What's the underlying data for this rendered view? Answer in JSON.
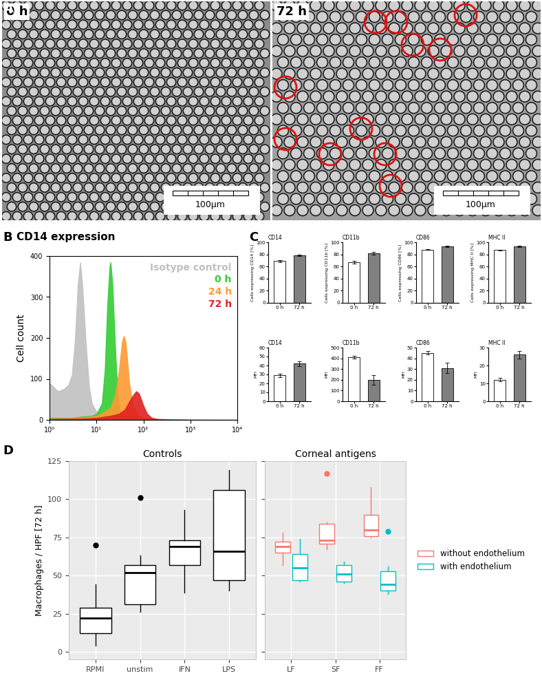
{
  "images": {
    "panel_label": "A",
    "items": [
      {
        "label": "0 h",
        "scale_bar": "100µm"
      },
      {
        "label": "72 h",
        "scale_bar": "100µm"
      }
    ]
  },
  "chart_data": [
    {
      "type": "area",
      "panel_label": "B",
      "title": "CD14 expression",
      "ylabel": "Cell count",
      "log": "x",
      "xlim": [
        1,
        10000
      ],
      "xticks": [
        {
          "value": 1,
          "label": "10⁰"
        },
        {
          "value": 10,
          "label": "10¹"
        },
        {
          "value": 100,
          "label": "10²"
        },
        {
          "value": 1000,
          "label": "10³"
        },
        {
          "value": 10000,
          "label": "10⁴"
        }
      ],
      "ylim": [
        0,
        400
      ],
      "yticks": [
        0,
        100,
        200,
        300,
        400
      ],
      "series": [
        {
          "name": "Isotype control",
          "color": "#c0c0c0",
          "x": [
            1,
            1.5,
            2,
            2.5,
            3,
            3.5,
            4,
            4.5,
            5,
            6,
            7,
            8,
            10,
            15,
            20,
            30,
            50,
            100,
            1000,
            10000
          ],
          "values": [
            90,
            70,
            75,
            85,
            110,
            200,
            330,
            385,
            330,
            180,
            80,
            40,
            20,
            10,
            8,
            6,
            5,
            3,
            1,
            0
          ]
        },
        {
          "name": "0 h",
          "color": "#33cc33",
          "x": [
            1,
            3,
            5,
            8,
            10,
            13,
            15,
            17,
            19,
            20,
            22,
            25,
            28,
            32,
            40,
            60,
            100,
            1000,
            10000
          ],
          "values": [
            5,
            5,
            8,
            10,
            15,
            40,
            120,
            280,
            375,
            385,
            330,
            180,
            70,
            25,
            8,
            3,
            1,
            0,
            0
          ]
        },
        {
          "name": "24 h",
          "color": "#ff9933",
          "x": [
            1,
            5,
            10,
            15,
            20,
            25,
            30,
            35,
            38,
            42,
            45,
            50,
            60,
            80,
            100,
            200,
            1000,
            10000
          ],
          "values": [
            3,
            5,
            10,
            20,
            30,
            60,
            120,
            190,
            205,
            190,
            150,
            90,
            35,
            10,
            5,
            2,
            0,
            0
          ]
        },
        {
          "name": "72 h",
          "color": "#e02020",
          "x": [
            1,
            5,
            10,
            20,
            30,
            40,
            50,
            60,
            70,
            80,
            90,
            100,
            120,
            150,
            200,
            300,
            1000,
            10000
          ],
          "values": [
            2,
            3,
            5,
            10,
            15,
            25,
            45,
            60,
            70,
            65,
            50,
            35,
            15,
            5,
            2,
            1,
            0,
            0
          ]
        }
      ]
    },
    {
      "type": "bar",
      "panel_label": "C",
      "title": "CD14",
      "ylabel": "Cells expressing CD14 [%]",
      "categories": [
        "0 h",
        "72 h"
      ],
      "values": [
        69,
        78
      ],
      "errors": [
        2,
        1
      ],
      "colors": [
        "#ffffff",
        "#808080"
      ],
      "ylim": [
        0,
        100
      ],
      "yticks": [
        0,
        20,
        40,
        60,
        80,
        100
      ]
    },
    {
      "type": "bar",
      "title": "CD11b",
      "ylabel": "Cells expressing CD11b [%]",
      "categories": [
        "0 h",
        "72 h"
      ],
      "values": [
        67,
        82
      ],
      "errors": [
        2,
        2
      ],
      "colors": [
        "#ffffff",
        "#808080"
      ],
      "ylim": [
        0,
        100
      ],
      "yticks": [
        0,
        20,
        40,
        60,
        80,
        100
      ]
    },
    {
      "type": "bar",
      "title": "CD86",
      "ylabel": "Cells expressing CD86 [%]",
      "categories": [
        "0 h",
        "72 h"
      ],
      "values": [
        88,
        93
      ],
      "errors": [
        1,
        1
      ],
      "colors": [
        "#ffffff",
        "#808080"
      ],
      "ylim": [
        0,
        100
      ],
      "yticks": [
        0,
        20,
        40,
        60,
        80,
        100
      ]
    },
    {
      "type": "bar",
      "title": "MHC II",
      "ylabel": "Cells expressing MHC II [%]",
      "categories": [
        "0 h",
        "72 h"
      ],
      "values": [
        87,
        93
      ],
      "errors": [
        0.5,
        1
      ],
      "colors": [
        "#ffffff",
        "#808080"
      ],
      "ylim": [
        0,
        100
      ],
      "yticks": [
        0,
        20,
        40,
        60,
        80,
        100
      ]
    },
    {
      "type": "bar",
      "title": "CD14",
      "ylabel": "MFI",
      "categories": [
        "0 h",
        "72 h"
      ],
      "values": [
        29,
        42
      ],
      "errors": [
        2,
        3
      ],
      "colors": [
        "#ffffff",
        "#808080"
      ],
      "ylim": [
        0,
        60
      ],
      "yticks": [
        0,
        10,
        20,
        30,
        40,
        50,
        60
      ]
    },
    {
      "type": "bar",
      "title": "CD11b",
      "ylabel": "MFI",
      "categories": [
        "0 h",
        "72 h"
      ],
      "values": [
        410,
        200
      ],
      "errors": [
        10,
        45
      ],
      "colors": [
        "#ffffff",
        "#808080"
      ],
      "ylim": [
        0,
        500
      ],
      "yticks": [
        0,
        100,
        200,
        300,
        400,
        500
      ]
    },
    {
      "type": "bar",
      "title": "CD86",
      "ylabel": "MFI",
      "categories": [
        "0 h",
        "72 h"
      ],
      "values": [
        45,
        31
      ],
      "errors": [
        1.5,
        5
      ],
      "colors": [
        "#ffffff",
        "#808080"
      ],
      "ylim": [
        0,
        50
      ],
      "yticks": [
        0,
        10,
        20,
        30,
        40,
        50
      ]
    },
    {
      "type": "bar",
      "title": "MHC II",
      "ylabel": "MFI",
      "categories": [
        "0 h",
        "72 h"
      ],
      "values": [
        12,
        26
      ],
      "errors": [
        1,
        2
      ],
      "colors": [
        "#ffffff",
        "#808080"
      ],
      "ylim": [
        0,
        30
      ],
      "yticks": [
        0,
        10,
        20,
        30
      ]
    },
    {
      "type": "box",
      "panel_label": "D",
      "title": "Controls",
      "ylabel": "Macrophages / HPF [72 h]",
      "categories": [
        "RPMI",
        "unstim",
        "IFN",
        "LPS"
      ],
      "ylim": [
        -5,
        125
      ],
      "yticks": [
        0,
        25,
        50,
        75,
        100,
        125
      ],
      "grid": true,
      "series": [
        {
          "color": "#000000",
          "boxes": [
            {
              "whislo": 4,
              "q1": 12,
              "med": 22,
              "q3": 29,
              "whishi": 44,
              "fliers": [
                70
              ]
            },
            {
              "whislo": 26,
              "q1": 31,
              "med": 52,
              "q3": 57,
              "whishi": 63,
              "fliers": [
                101
              ]
            },
            {
              "whislo": 39,
              "q1": 57,
              "med": 69,
              "q3": 73,
              "whishi": 93,
              "fliers": []
            },
            {
              "whislo": 40,
              "q1": 47,
              "med": 66,
              "q3": 106,
              "whishi": 119,
              "fliers": []
            }
          ]
        }
      ]
    },
    {
      "type": "box",
      "title": "Corneal antigens",
      "categories": [
        "LF",
        "SF",
        "FF"
      ],
      "ylim": [
        -5,
        125
      ],
      "yticks": [
        0,
        25,
        50,
        75,
        100,
        125
      ],
      "grid": true,
      "tick_labels": "x",
      "legend": "right",
      "series": [
        {
          "name": "without endothelium",
          "color": "#f8766d",
          "boxes": [
            {
              "whislo": 57,
              "q1": 65,
              "med": 69,
              "q3": 72,
              "whishi": 78,
              "fliers": []
            },
            {
              "whislo": 67,
              "q1": 71,
              "med": 73,
              "q3": 84,
              "whishi": 85,
              "fliers": [
                117
              ]
            },
            {
              "whislo": 75,
              "q1": 76,
              "med": 80,
              "q3": 90,
              "whishi": 108,
              "fliers": []
            }
          ]
        },
        {
          "name": "with endothelium",
          "color": "#00bfc4",
          "boxes": [
            {
              "whislo": 46,
              "q1": 47,
              "med": 55,
              "q3": 64,
              "whishi": 74,
              "fliers": []
            },
            {
              "whislo": 45,
              "q1": 46,
              "med": 51,
              "q3": 57,
              "whishi": 59,
              "fliers": []
            },
            {
              "whislo": 38,
              "q1": 40,
              "med": 44,
              "q3": 53,
              "whishi": 56,
              "fliers": [
                79
              ]
            }
          ]
        }
      ]
    }
  ]
}
